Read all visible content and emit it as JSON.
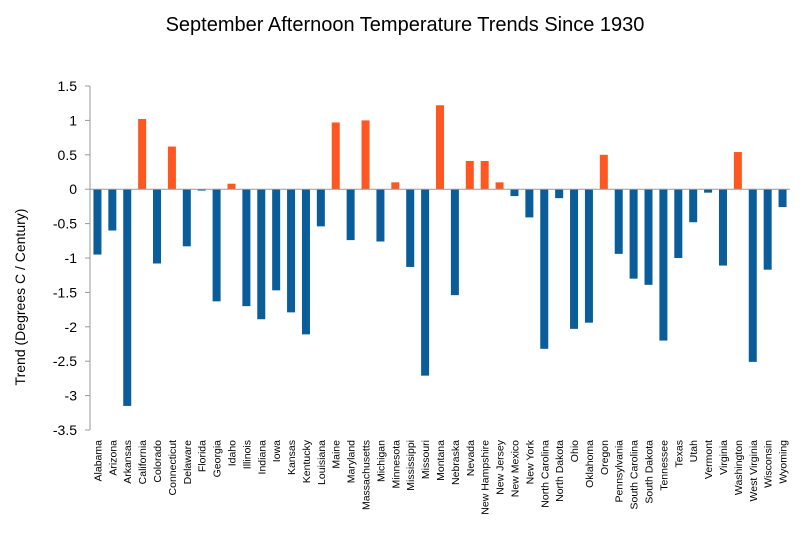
{
  "chart_data": {
    "type": "bar",
    "title": "September Afternoon Temperature Trends Since 1930",
    "xlabel": "",
    "ylabel": "Trend (Degrees C / Century)",
    "ylim": [
      -3.5,
      1.5
    ],
    "yticks": [
      "1.5",
      "1",
      "0.5",
      "0",
      "-0.5",
      "-1",
      "-1.5",
      "-2",
      "-2.5",
      "-3",
      "-3.5"
    ],
    "grid": false,
    "legend": "none",
    "colors": {
      "positive": "#ff5722",
      "negative": "#0a5d99",
      "axis": "#999999"
    },
    "categories": [
      "Alabama",
      "Arizona",
      "Arkansas",
      "California",
      "Colorado",
      "Connecticut",
      "Delaware",
      "Florida",
      "Georgia",
      "Idaho",
      "Illinois",
      "Indiana",
      "Iowa",
      "Kansas",
      "Kentucky",
      "Louisiana",
      "Maine",
      "Maryland",
      "Massachusetts",
      "Michigan",
      "Minnesota",
      "Mississippi",
      "Missouri",
      "Montana",
      "Nebraska",
      "Nevada",
      "New  Hampshire",
      "New  Jersey",
      "New  Mexico",
      "New  York",
      "North  Carolina",
      "North  Dakota",
      "Ohio",
      "Oklahoma",
      "Oregon",
      "Pennsylvania",
      "South  Carolina",
      "South  Dakota",
      "Tennessee",
      "Texas",
      "Utah",
      "Vermont",
      "Virginia",
      "Washington",
      "West  Virginia",
      "Wisconsin",
      "Wyoming"
    ],
    "values": [
      -0.95,
      -0.6,
      -3.15,
      1.02,
      -1.08,
      0.62,
      -0.83,
      -0.02,
      -1.63,
      0.08,
      -1.7,
      -1.89,
      -1.47,
      -1.79,
      -2.11,
      -0.54,
      0.97,
      -0.74,
      1.0,
      -0.76,
      0.1,
      -1.13,
      -2.71,
      1.22,
      -1.54,
      0.41,
      0.41,
      0.1,
      -0.1,
      -0.41,
      -2.32,
      -0.13,
      -2.03,
      -1.94,
      0.5,
      -0.94,
      -1.3,
      -1.39,
      -2.2,
      -1.0,
      -0.48,
      -0.05,
      -1.11,
      0.54,
      -2.51,
      -1.17,
      -0.26
    ]
  }
}
